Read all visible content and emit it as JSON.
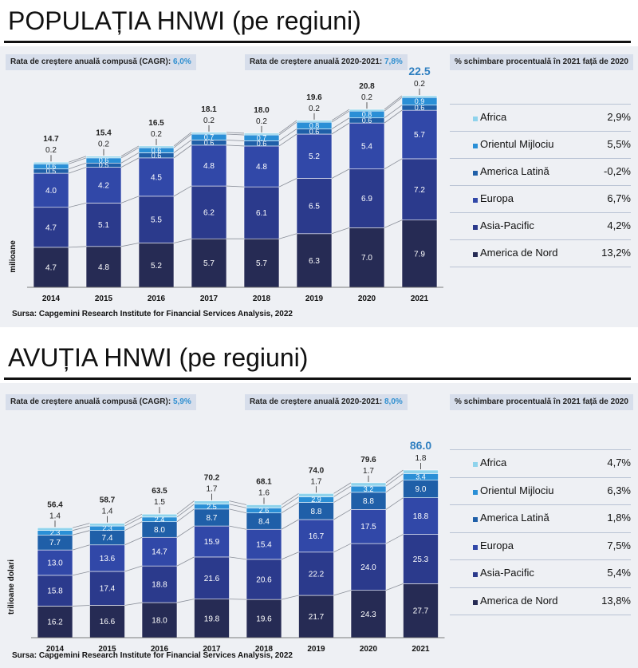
{
  "sections": [
    {
      "id": "populatie",
      "title": "POPULAȚIA HNWI (pe regiuni)",
      "cagr_label": "Rata de creștere anuală compusă (CAGR):",
      "cagr_value": "6,0%",
      "growth_label": "Rata de creștere anuală 2020-2021:",
      "growth_value": "7,8%",
      "change_header": "% schimbare procentuală în 2021 față de 2020",
      "ylabel": "milioane",
      "source": "Sursa: Capgemini Research Institute for Financial Services Analysis, 2022",
      "legend": [
        {
          "name": "Africa",
          "value": "2,9%"
        },
        {
          "name": "Orientul Mijlociu",
          "value": "5,5%"
        },
        {
          "name": "America Latină",
          "value": "-0,2%"
        },
        {
          "name": "Europa",
          "value": "6,7%"
        },
        {
          "name": "Asia-Pacific",
          "value": "4,2%"
        },
        {
          "name": "America de Nord",
          "value": "13,2%"
        }
      ]
    },
    {
      "id": "avutie",
      "title": "AVUȚIA HNWI (pe regiuni)",
      "cagr_label": "Rata de creștere anuală compusă (CAGR):",
      "cagr_value": "5,9%",
      "growth_label": "Rata de creștere anuală 2020-2021:",
      "growth_value": "8,0%",
      "change_header": "% schimbare procentuală în 2021 față de 2020",
      "ylabel": "trilioane dolari",
      "source": "Sursa: Capgemini Research Institute for Financial Services Analysis, 2022",
      "legend": [
        {
          "name": "Africa",
          "value": "4,7%"
        },
        {
          "name": "Orientul Mijlociu",
          "value": "6,3%"
        },
        {
          "name": "America Latină",
          "value": "1,8%"
        },
        {
          "name": "Europa",
          "value": "7,5%"
        },
        {
          "name": "Asia-Pacific",
          "value": "5,4%"
        },
        {
          "name": "America de Nord",
          "value": "13,8%"
        }
      ]
    }
  ],
  "colors": {
    "America de Nord": "#262b54",
    "Asia-Pacific": "#2b3a8c",
    "Europa": "#3148a8",
    "America Latină": "#1f5fa8",
    "Orientul Mijlociu": "#2a8fd6",
    "Africa": "#8fd3ec"
  },
  "chart_data": [
    {
      "type": "bar",
      "stacked": true,
      "ylabel": "milioane",
      "categories": [
        "2014",
        "2015",
        "2016",
        "2017",
        "2018",
        "2019",
        "2020",
        "2021"
      ],
      "totals": [
        "14.7",
        "15.4",
        "16.5",
        "18.1",
        "18.0",
        "19.6",
        "20.8",
        "22.5"
      ],
      "series": [
        {
          "name": "America de Nord",
          "values": [
            4.7,
            4.8,
            5.2,
            5.7,
            5.7,
            6.3,
            7.0,
            7.9
          ]
        },
        {
          "name": "Asia-Pacific",
          "values": [
            4.7,
            5.1,
            5.5,
            6.2,
            6.1,
            6.5,
            6.9,
            7.2
          ]
        },
        {
          "name": "Europa",
          "values": [
            4.0,
            4.2,
            4.5,
            4.8,
            4.8,
            5.2,
            5.4,
            5.7
          ]
        },
        {
          "name": "America Latină",
          "values": [
            0.5,
            0.5,
            0.6,
            0.6,
            0.6,
            0.6,
            0.6,
            0.6
          ]
        },
        {
          "name": "Orientul Mijlociu",
          "values": [
            0.6,
            0.6,
            0.6,
            0.7,
            0.7,
            0.8,
            0.8,
            0.9
          ]
        },
        {
          "name": "Africa",
          "values": [
            0.2,
            0.2,
            0.2,
            0.2,
            0.2,
            0.2,
            0.2,
            0.2
          ]
        }
      ],
      "ylim": [
        0,
        22.5
      ]
    },
    {
      "type": "bar",
      "stacked": true,
      "ylabel": "trilioane dolari",
      "categories": [
        "2014",
        "2015",
        "2016",
        "2017",
        "2018",
        "2019",
        "2020",
        "2021"
      ],
      "totals": [
        "56.4",
        "58.7",
        "63.5",
        "70.2",
        "68.1",
        "74.0",
        "79.6",
        "86.0"
      ],
      "series": [
        {
          "name": "America de Nord",
          "values": [
            16.2,
            16.6,
            18.0,
            19.8,
            19.6,
            21.7,
            24.3,
            27.7
          ]
        },
        {
          "name": "Asia-Pacific",
          "values": [
            15.8,
            17.4,
            18.8,
            21.6,
            20.6,
            22.2,
            24.0,
            25.3
          ]
        },
        {
          "name": "Europa",
          "values": [
            13.0,
            13.6,
            14.7,
            15.9,
            15.4,
            16.7,
            17.5,
            18.8
          ]
        },
        {
          "name": "America Latină",
          "values": [
            7.7,
            7.4,
            8.0,
            8.7,
            8.4,
            8.8,
            8.8,
            9.0
          ]
        },
        {
          "name": "Orientul Mijlociu",
          "values": [
            2.3,
            2.3,
            2.4,
            2.5,
            2.6,
            2.9,
            3.2,
            3.4
          ]
        },
        {
          "name": "Africa",
          "values": [
            1.4,
            1.4,
            1.5,
            1.7,
            1.6,
            1.7,
            1.7,
            1.8
          ]
        }
      ],
      "ylim": [
        0,
        86
      ]
    }
  ]
}
